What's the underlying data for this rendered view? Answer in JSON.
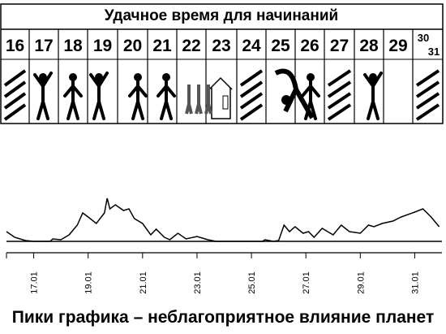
{
  "header": {
    "title": "Удачное время для начинаний"
  },
  "days": [
    "16",
    "17",
    "18",
    "19",
    "20",
    "21",
    "22",
    "23",
    "24",
    "25",
    "26",
    "27",
    "28",
    "29"
  ],
  "last_days": [
    "30",
    "31"
  ],
  "chart_data": {
    "type": "line",
    "x": [
      16.0,
      16.3,
      16.7,
      17.0,
      17.6,
      17.7,
      18.0,
      18.3,
      18.6,
      18.8,
      19.0,
      19.3,
      19.6,
      19.7,
      19.8,
      20.0,
      20.3,
      20.5,
      20.7,
      21.0,
      21.3,
      21.5,
      21.8,
      22.0,
      22.3,
      22.6,
      23.0,
      23.4,
      23.7,
      25.4,
      25.5,
      25.8,
      26.0,
      26.2,
      26.4,
      26.6,
      26.9,
      27.1,
      27.3,
      27.6,
      27.8,
      28.0,
      28.3,
      28.6,
      29.0,
      29.3,
      29.5,
      29.8,
      30.2,
      30.5,
      31.0,
      31.3,
      31.6,
      31.9
    ],
    "values": [
      12,
      5,
      1,
      0,
      0,
      3,
      2,
      8,
      20,
      35,
      30,
      22,
      35,
      53,
      40,
      45,
      38,
      40,
      28,
      22,
      8,
      15,
      5,
      2,
      10,
      3,
      6,
      2,
      0,
      0,
      2,
      0,
      1,
      20,
      12,
      18,
      10,
      12,
      5,
      16,
      12,
      8,
      20,
      12,
      10,
      20,
      18,
      22,
      25,
      30,
      36,
      40,
      30,
      18
    ],
    "xlim": [
      16,
      32
    ],
    "xticks": [
      {
        "value": 17,
        "label": "17.01"
      },
      {
        "value": 19,
        "label": "19.01"
      },
      {
        "value": 21,
        "label": "21.01"
      },
      {
        "value": 23,
        "label": "23.01"
      },
      {
        "value": 25,
        "label": "25.01"
      },
      {
        "value": 27,
        "label": "27.01"
      },
      {
        "value": 29,
        "label": "29.01"
      },
      {
        "value": 31,
        "label": "31.01"
      }
    ],
    "ylim": [
      0,
      60
    ],
    "caption": "Пики графика – неблагоприятное влияние планет"
  }
}
